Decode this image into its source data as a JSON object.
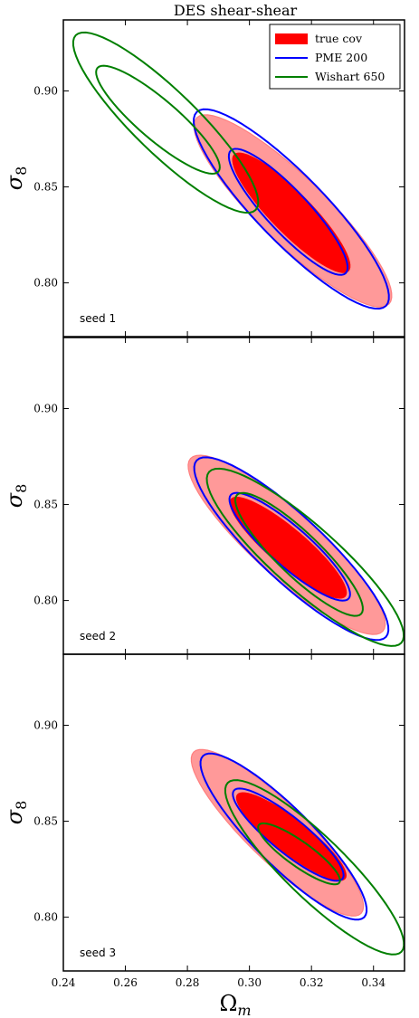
{
  "chart_data": {
    "type": "contour",
    "title": "DES shear-shear",
    "xlabel": "Ω_m",
    "ylabel": "σ_8",
    "xlim": [
      0.24,
      0.35
    ],
    "ylim": [
      0.772,
      0.937
    ],
    "xticks": [
      "0.24",
      "0.26",
      "0.28",
      "0.30",
      "0.32",
      "0.34"
    ],
    "yticks": [
      "0.80",
      "0.85",
      "0.90"
    ],
    "colors": {
      "true_cov_inner": "#ff0000",
      "true_cov_outer": "#ff9999",
      "true_cov_outer_edge": "#ff7f7f",
      "pme": "#0000ff",
      "wishart": "#007f00"
    },
    "legend": {
      "position": "top-right",
      "entries": [
        {
          "label": "true cov",
          "style": "filled",
          "color": "#ff0000"
        },
        {
          "label": "PME 200",
          "style": "line",
          "color": "#0000ff"
        },
        {
          "label": "Wishart 650",
          "style": "line",
          "color": "#007f00"
        }
      ]
    },
    "panels": [
      {
        "label": "seed 1",
        "true_cov": {
          "center": [
            0.313,
            0.838
          ],
          "inner": {
            "x0": 0.295,
            "x1": 0.332,
            "y_at_x0": 0.867,
            "y_at_x1": 0.806
          },
          "outer": {
            "x0": 0.283,
            "x1": 0.345,
            "y_at_x0": 0.886,
            "y_at_x1": 0.789
          }
        },
        "pme": {
          "inner": {
            "x0": 0.294,
            "x1": 0.331,
            "y_at_x0": 0.869,
            "y_at_x1": 0.805
          },
          "outer": {
            "x0": 0.283,
            "x1": 0.344,
            "y_at_x0": 0.889,
            "y_at_x1": 0.788
          }
        },
        "wishart": {
          "inner": {
            "x0": 0.251,
            "x1": 0.29,
            "y_at_x0": 0.912,
            "y_at_x1": 0.858
          },
          "outer": {
            "x0": 0.244,
            "x1": 0.302,
            "y_at_x0": 0.929,
            "y_at_x1": 0.838
          }
        }
      },
      {
        "label": "seed 2",
        "true_cov": {
          "center": [
            0.311,
            0.825
          ],
          "inner": {
            "x0": 0.294,
            "x1": 0.331,
            "y_at_x0": 0.853,
            "y_at_x1": 0.802
          },
          "outer": {
            "x0": 0.281,
            "x1": 0.343,
            "y_at_x0": 0.874,
            "y_at_x1": 0.784
          }
        },
        "pme": {
          "inner": {
            "x0": 0.294,
            "x1": 0.332,
            "y_at_x0": 0.855,
            "y_at_x1": 0.801
          },
          "outer": {
            "x0": 0.283,
            "x1": 0.344,
            "y_at_x0": 0.873,
            "y_at_x1": 0.781
          }
        },
        "wishart": {
          "inner": {
            "x0": 0.296,
            "x1": 0.336,
            "y_at_x0": 0.855,
            "y_at_x1": 0.793
          },
          "outer": {
            "x0": 0.287,
            "x1": 0.349,
            "y_at_x0": 0.867,
            "y_at_x1": 0.778
          }
        }
      },
      {
        "label": "seed 3",
        "true_cov": {
          "center": [
            0.312,
            0.833
          ],
          "inner": {
            "x0": 0.296,
            "x1": 0.331,
            "y_at_x0": 0.864,
            "y_at_x1": 0.82
          },
          "outer": {
            "x0": 0.282,
            "x1": 0.336,
            "y_at_x0": 0.886,
            "y_at_x1": 0.802
          }
        },
        "pme": {
          "inner": {
            "x0": 0.295,
            "x1": 0.33,
            "y_at_x0": 0.866,
            "y_at_x1": 0.82
          },
          "outer": {
            "x0": 0.285,
            "x1": 0.337,
            "y_at_x0": 0.884,
            "y_at_x1": 0.8
          }
        },
        "wishart": {
          "inner": {
            "x0": 0.303,
            "x1": 0.329,
            "y_at_x0": 0.848,
            "y_at_x1": 0.818
          },
          "outer": {
            "x0": 0.293,
            "x1": 0.349,
            "y_at_x0": 0.87,
            "y_at_x1": 0.782
          }
        }
      }
    ]
  }
}
